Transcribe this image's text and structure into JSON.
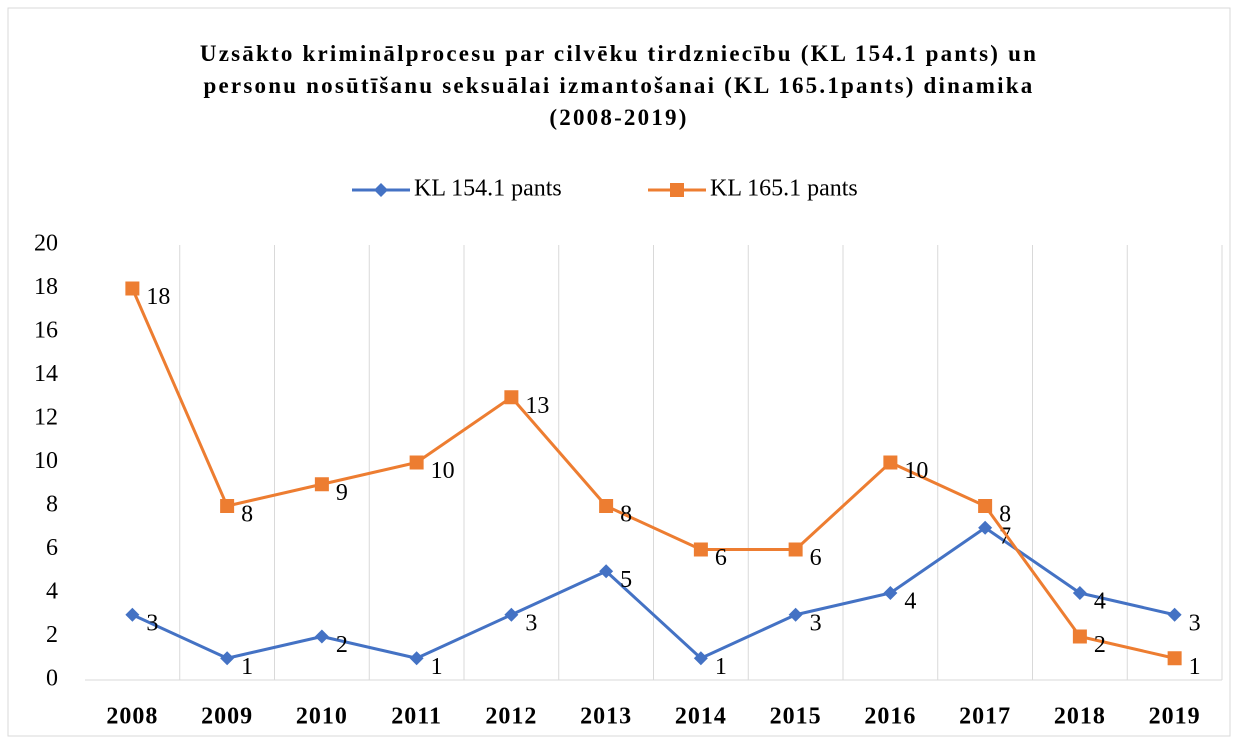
{
  "chart_data": {
    "type": "line",
    "title": "Uzsākto kriminālprocesu par cilvēku tirdzniecību (KL 154.1 pants) un personu nosūtīšanu seksuālai izmantošanai (KL 165.1pants) dinamika (2008-2019)",
    "categories": [
      "2008",
      "2009",
      "2010",
      "2011",
      "2012",
      "2013",
      "2014",
      "2015",
      "2016",
      "2017",
      "2018",
      "2019"
    ],
    "series": [
      {
        "name": "KL 154.1 pants",
        "color": "#4472c4",
        "marker": "diamond",
        "values": [
          3,
          1,
          2,
          1,
          3,
          5,
          1,
          3,
          4,
          7,
          4,
          3
        ]
      },
      {
        "name": "KL 165.1 pants",
        "color": "#ed7d31",
        "marker": "square",
        "values": [
          18,
          8,
          9,
          10,
          13,
          8,
          6,
          6,
          10,
          8,
          2,
          1
        ]
      }
    ],
    "ylim": [
      0,
      20
    ],
    "yticks": [
      0,
      2,
      4,
      6,
      8,
      10,
      12,
      14,
      16,
      18,
      20
    ],
    "grid": true,
    "legend": "top"
  }
}
